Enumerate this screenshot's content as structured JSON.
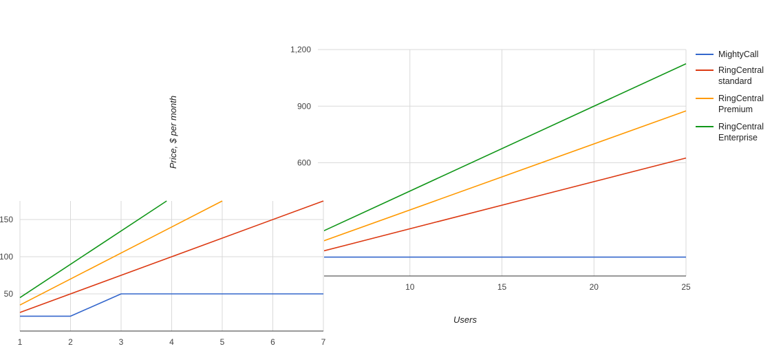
{
  "colors": {
    "mightycall": "#3366cc",
    "standard": "#dc3912",
    "premium": "#ff9900",
    "enterprise": "#109618"
  },
  "legend": [
    {
      "lines": [
        "MightyCall"
      ],
      "color": "#3366cc"
    },
    {
      "lines": [
        "RingCentral",
        "standard"
      ],
      "color": "#dc3912"
    },
    {
      "lines": [
        "RingCentral",
        "Premium"
      ],
      "color": "#ff9900"
    },
    {
      "lines": [
        "RingCentral",
        "Enterprise"
      ],
      "color": "#109618"
    }
  ],
  "chart_data": [
    {
      "type": "line",
      "xlabel": "Users",
      "ylabel": "Price, $ per month",
      "xlim": [
        5,
        25
      ],
      "ylim": [
        0,
        1200
      ],
      "x_ticks": [
        "10",
        "15",
        "20",
        "25"
      ],
      "y_ticks": [
        "600",
        "900",
        "1,200"
      ],
      "grid": true,
      "legend_position": "right",
      "series": [
        {
          "name": "MightyCall",
          "x": [
            5,
            7,
            10,
            25
          ],
          "values": [
            100,
            100,
            100,
            100
          ]
        },
        {
          "name": "RingCentral standard",
          "x": [
            5,
            25
          ],
          "values": [
            125,
            625
          ]
        },
        {
          "name": "RingCentral Premium",
          "x": [
            5,
            25
          ],
          "values": [
            175,
            875
          ]
        },
        {
          "name": "RingCentral Enterprise",
          "x": [
            5,
            25
          ],
          "values": [
            225,
            1125
          ]
        }
      ]
    },
    {
      "type": "line",
      "xlim": [
        1,
        7
      ],
      "ylim": [
        0,
        175
      ],
      "x_ticks": [
        "1",
        "2",
        "3",
        "4",
        "5",
        "6",
        "7"
      ],
      "y_ticks": [
        "50",
        "100",
        "150"
      ],
      "grid": true,
      "series": [
        {
          "name": "MightyCall",
          "x": [
            1,
            2,
            3,
            7
          ],
          "values": [
            20,
            20,
            50,
            50
          ]
        },
        {
          "name": "RingCentral standard",
          "x": [
            1,
            7
          ],
          "values": [
            25,
            175
          ]
        },
        {
          "name": "RingCentral Premium",
          "x": [
            1,
            5
          ],
          "values": [
            35,
            175
          ]
        },
        {
          "name": "RingCentral Enterprise",
          "x": [
            1,
            3.9
          ],
          "values": [
            45,
            175
          ]
        }
      ]
    }
  ]
}
